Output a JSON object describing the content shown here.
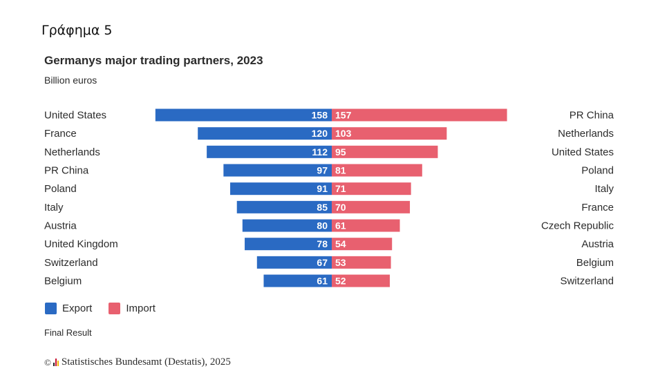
{
  "heading": "Γράφημα 5",
  "colors": {
    "export": "#2a6ac3",
    "import": "#e8606f"
  },
  "chart_data": {
    "type": "bar",
    "orientation": "horizontal-diverging",
    "title": "Germanys major trading partners, 2023",
    "subtitle": "Billion euros",
    "unit": "Billion euros",
    "xlim": [
      0,
      160
    ],
    "grid": false,
    "series": [
      {
        "name": "Export",
        "side": "left",
        "categories": [
          "United States",
          "France",
          "Netherlands",
          "PR China",
          "Poland",
          "Italy",
          "Austria",
          "United Kingdom",
          "Switzerland",
          "Belgium"
        ],
        "values": [
          158,
          120,
          112,
          97,
          91,
          85,
          80,
          78,
          67,
          61
        ]
      },
      {
        "name": "Import",
        "side": "right",
        "categories": [
          "PR China",
          "Netherlands",
          "United States",
          "Poland",
          "Italy",
          "France",
          "Czech Republic",
          "Austria",
          "Belgium",
          "Switzerland"
        ],
        "values": [
          157,
          103,
          95,
          81,
          71,
          70,
          61,
          54,
          53,
          52
        ]
      }
    ],
    "legend": [
      {
        "label": "Export",
        "series": "Export"
      },
      {
        "label": "Import",
        "series": "Import"
      }
    ],
    "legend_position": "bottom-left",
    "note": "Final Result"
  },
  "footer": {
    "copyright_symbol": "©",
    "source": "Statistisches Bundesamt (Destatis), 2025"
  }
}
